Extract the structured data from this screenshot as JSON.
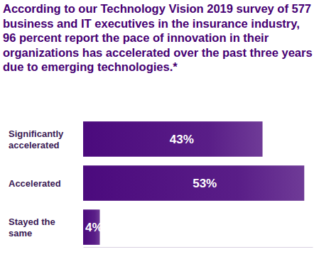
{
  "chart_data": {
    "type": "bar",
    "orientation": "horizontal",
    "title": "According to our Technology Vision 2019 survey of 577 business and IT executives in the insurance industry, 96 percent report the pace of innovation in their organizations has accelerated over the past three years due to emerging technologies.*",
    "categories": [
      "Significantly accelerated",
      "Accelerated",
      "Stayed the same"
    ],
    "values": [
      43,
      53,
      4
    ],
    "value_labels": [
      "43%",
      "53%",
      "4%"
    ],
    "color": "#4b0a7d",
    "xlim": [
      0,
      55
    ],
    "xticks": [],
    "data_labels": true,
    "tick_labels": false,
    "grid": false
  }
}
